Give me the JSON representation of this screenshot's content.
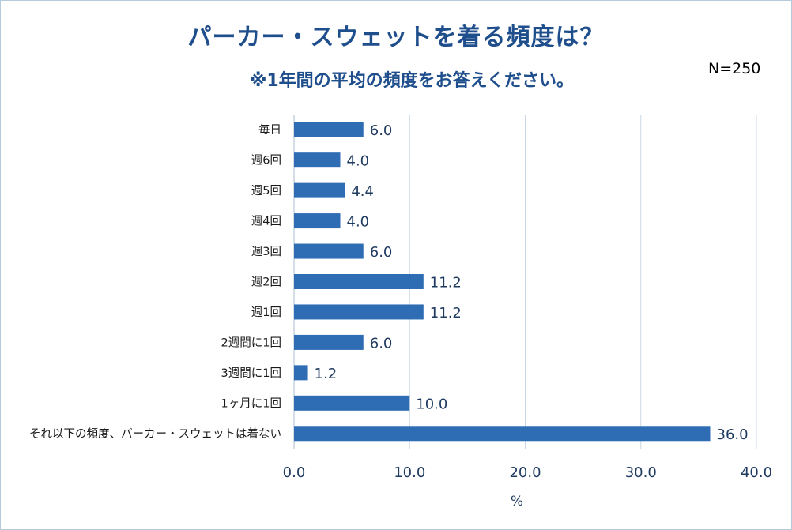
{
  "title": "パーカー・スウェットを着る頻度は？",
  "subtitle": "※1年間の平均の頻度をお答えください。",
  "sample_size": "N=250",
  "chart_data": {
    "type": "bar",
    "orientation": "horizontal",
    "title": "パーカー・スウェットを着る頻度は？",
    "subtitle": "※1年間の平均の頻度をお答えください。",
    "categories": [
      "毎日",
      "週6回",
      "週5回",
      "週4回",
      "週3回",
      "週2回",
      "週1回",
      "2週間に1回",
      "3週間に1回",
      "1ヶ月に1回",
      "それ以下の頻度、パーカー・スウェットは着ない"
    ],
    "values": [
      6.0,
      4.0,
      4.4,
      4.0,
      6.0,
      11.2,
      11.2,
      6.0,
      1.2,
      10.0,
      36.0
    ],
    "value_labels": [
      "6.0",
      "4.0",
      "4.4",
      "4.0",
      "6.0",
      "11.2",
      "11.2",
      "6.0",
      "1.2",
      "10.0",
      "36.0"
    ],
    "xlabel": "%",
    "ylabel": "",
    "xlim": [
      0,
      40
    ],
    "xticks": [
      "0.0",
      "10.0",
      "20.0",
      "30.0",
      "40.0"
    ],
    "xtick_values": [
      0,
      10,
      20,
      30,
      40
    ],
    "grid": true,
    "bar_color": "#2e6db4",
    "grid_color": "#c9d7e6"
  }
}
